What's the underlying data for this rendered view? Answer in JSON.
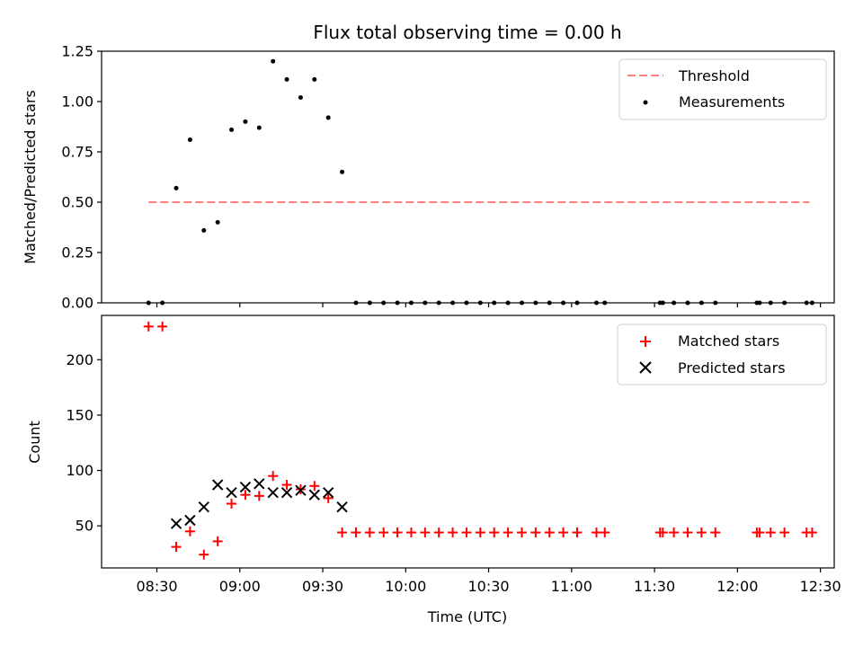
{
  "chart_data": [
    {
      "type": "scatter",
      "title": "Flux total observing time = 0.00 h",
      "xlabel": "",
      "ylabel": "Matched/Predicted stars",
      "x_unit": "time of day (UTC)",
      "xlim": [
        "08:10",
        "12:35"
      ],
      "ylim": [
        0,
        1.25
      ],
      "yticks": [
        "0.00",
        "0.25",
        "0.50",
        "0.75",
        "1.00",
        "1.25"
      ],
      "grid": false,
      "legend": "top-right",
      "threshold": {
        "name": "Threshold",
        "value": 0.5,
        "x_start": "08:27",
        "x_end": "12:26",
        "color": "#ff8080",
        "style": "dashed"
      },
      "measurements": {
        "name": "Measurements",
        "color": "#000000",
        "points": [
          [
            "08:27",
            0
          ],
          [
            "08:32",
            0
          ],
          [
            "08:37",
            0.57
          ],
          [
            "08:42",
            0.81
          ],
          [
            "08:47",
            0.36
          ],
          [
            "08:52",
            0.4
          ],
          [
            "08:57",
            0.86
          ],
          [
            "09:02",
            0.9
          ],
          [
            "09:07",
            0.87
          ],
          [
            "09:12",
            1.2
          ],
          [
            "09:17",
            1.11
          ],
          [
            "09:22",
            1.02
          ],
          [
            "09:27",
            1.11
          ],
          [
            "09:32",
            0.92
          ],
          [
            "09:37",
            0.65
          ],
          [
            "09:42",
            0
          ],
          [
            "09:47",
            0
          ],
          [
            "09:52",
            0
          ],
          [
            "09:57",
            0
          ],
          [
            "10:02",
            0
          ],
          [
            "10:07",
            0
          ],
          [
            "10:12",
            0
          ],
          [
            "10:17",
            0
          ],
          [
            "10:22",
            0
          ],
          [
            "10:27",
            0
          ],
          [
            "10:32",
            0
          ],
          [
            "10:37",
            0
          ],
          [
            "10:42",
            0
          ],
          [
            "10:47",
            0
          ],
          [
            "10:52",
            0
          ],
          [
            "10:57",
            0
          ],
          [
            "11:02",
            0
          ],
          [
            "11:09",
            0
          ],
          [
            "11:12",
            0
          ],
          [
            "11:32",
            0
          ],
          [
            "11:33",
            0
          ],
          [
            "11:37",
            0
          ],
          [
            "11:42",
            0
          ],
          [
            "11:47",
            0
          ],
          [
            "11:52",
            0
          ],
          [
            "12:07",
            0
          ],
          [
            "12:08",
            0
          ],
          [
            "12:12",
            0
          ],
          [
            "12:17",
            0
          ],
          [
            "12:25",
            0
          ],
          [
            "12:27",
            0
          ]
        ]
      }
    },
    {
      "type": "scatter",
      "title": "",
      "xlabel": "Time (UTC)",
      "ylabel": "Count",
      "x_unit": "time of day (UTC)",
      "xlim": [
        "08:10",
        "12:35"
      ],
      "ylim": [
        12,
        240
      ],
      "xticks": [
        "08:30",
        "09:00",
        "09:30",
        "10:00",
        "10:30",
        "11:00",
        "11:30",
        "12:00",
        "12:30"
      ],
      "yticks": [
        "50",
        "100",
        "150",
        "200"
      ],
      "grid": false,
      "legend": "top-right",
      "series": [
        {
          "name": "Matched stars",
          "marker": "plus",
          "color": "#ff0000",
          "points": [
            [
              "08:27",
              230
            ],
            [
              "08:32",
              230
            ],
            [
              "08:37",
              31
            ],
            [
              "08:42",
              45
            ],
            [
              "08:47",
              24
            ],
            [
              "08:52",
              36
            ],
            [
              "08:57",
              70
            ],
            [
              "09:02",
              78
            ],
            [
              "09:07",
              77
            ],
            [
              "09:12",
              95
            ],
            [
              "09:17",
              87
            ],
            [
              "09:22",
              83
            ],
            [
              "09:27",
              86
            ],
            [
              "09:32",
              75
            ],
            [
              "09:37",
              44
            ],
            [
              "09:42",
              44
            ],
            [
              "09:47",
              44
            ],
            [
              "09:52",
              44
            ],
            [
              "09:57",
              44
            ],
            [
              "10:02",
              44
            ],
            [
              "10:07",
              44
            ],
            [
              "10:12",
              44
            ],
            [
              "10:17",
              44
            ],
            [
              "10:22",
              44
            ],
            [
              "10:27",
              44
            ],
            [
              "10:32",
              44
            ],
            [
              "10:37",
              44
            ],
            [
              "10:42",
              44
            ],
            [
              "10:47",
              44
            ],
            [
              "10:52",
              44
            ],
            [
              "10:57",
              44
            ],
            [
              "11:02",
              44
            ],
            [
              "11:09",
              44
            ],
            [
              "11:12",
              44
            ],
            [
              "11:32",
              44
            ],
            [
              "11:33",
              44
            ],
            [
              "11:37",
              44
            ],
            [
              "11:42",
              44
            ],
            [
              "11:47",
              44
            ],
            [
              "11:52",
              44
            ],
            [
              "12:07",
              44
            ],
            [
              "12:08",
              44
            ],
            [
              "12:12",
              44
            ],
            [
              "12:17",
              44
            ],
            [
              "12:25",
              44
            ],
            [
              "12:27",
              44
            ]
          ]
        },
        {
          "name": "Predicted stars",
          "marker": "x",
          "color": "#000000",
          "points": [
            [
              "08:37",
              52
            ],
            [
              "08:42",
              55
            ],
            [
              "08:47",
              67
            ],
            [
              "08:52",
              87
            ],
            [
              "08:57",
              80
            ],
            [
              "09:02",
              85
            ],
            [
              "09:07",
              88
            ],
            [
              "09:12",
              80
            ],
            [
              "09:17",
              80
            ],
            [
              "09:22",
              82
            ],
            [
              "09:27",
              78
            ],
            [
              "09:32",
              80
            ],
            [
              "09:37",
              67
            ]
          ]
        }
      ]
    }
  ]
}
